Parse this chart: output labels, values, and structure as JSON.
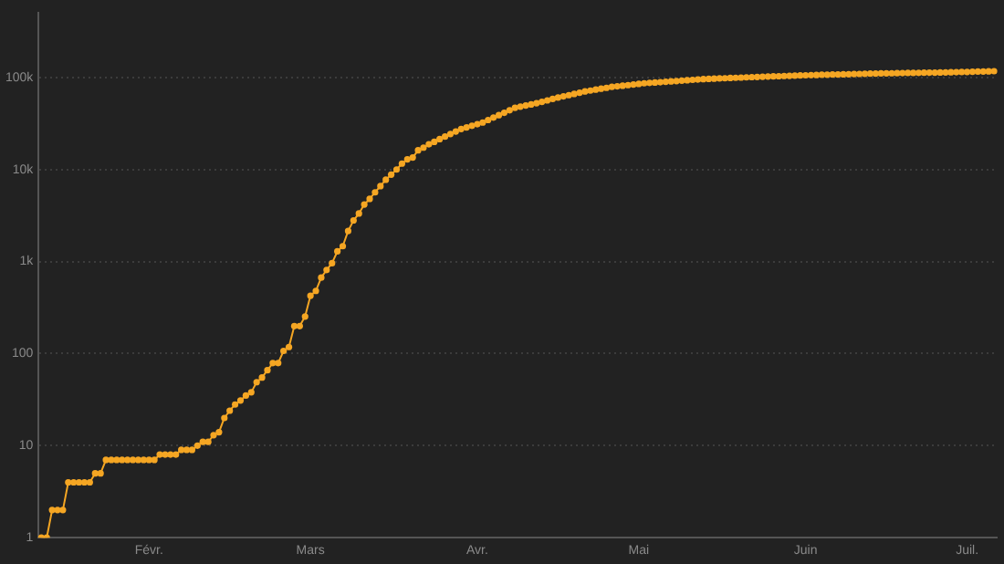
{
  "chart_data": {
    "type": "line",
    "log": "y",
    "grid": "y",
    "marker": "circle",
    "line_style": "solid",
    "categories": [
      null,
      null,
      null,
      null,
      null,
      null,
      null,
      null,
      null,
      null,
      null,
      null,
      null,
      null,
      null,
      null,
      null,
      null,
      null,
      null,
      "Févr.",
      null,
      null,
      null,
      null,
      null,
      null,
      null,
      null,
      null,
      null,
      null,
      null,
      null,
      null,
      null,
      null,
      null,
      null,
      null,
      null,
      null,
      null,
      null,
      null,
      null,
      null,
      null,
      null,
      null,
      "Mars",
      null,
      null,
      null,
      null,
      null,
      null,
      null,
      null,
      null,
      null,
      null,
      null,
      null,
      null,
      null,
      null,
      null,
      null,
      null,
      null,
      null,
      null,
      null,
      null,
      null,
      null,
      null,
      null,
      null,
      null,
      "Avr.",
      null,
      null,
      null,
      null,
      null,
      null,
      null,
      null,
      null,
      null,
      null,
      null,
      null,
      null,
      null,
      null,
      null,
      null,
      null,
      null,
      null,
      null,
      null,
      null,
      null,
      null,
      null,
      null,
      null,
      "Mai",
      null,
      null,
      null,
      null,
      null,
      null,
      null,
      null,
      null,
      null,
      null,
      null,
      null,
      null,
      null,
      null,
      null,
      null,
      null,
      null,
      null,
      null,
      null,
      null,
      null,
      null,
      null,
      null,
      null,
      null,
      "Juin",
      null,
      null,
      null,
      null,
      null,
      null,
      null,
      null,
      null,
      null,
      null,
      null,
      null,
      null,
      null,
      null,
      null,
      null,
      null,
      null,
      null,
      null,
      null,
      null,
      null,
      null,
      null,
      null,
      null,
      "Juil.",
      null,
      null,
      null,
      null,
      null
    ],
    "ylim": [
      1,
      500000
    ],
    "yticks": [
      {
        "value": 1,
        "label": "1"
      },
      {
        "value": 10,
        "label": "10"
      },
      {
        "value": 100,
        "label": "100"
      },
      {
        "value": 1000,
        "label": "1k"
      },
      {
        "value": 10000,
        "label": "10k"
      },
      {
        "value": 100000,
        "label": "100k"
      }
    ],
    "series": [
      {
        "color": "#f5a623",
        "values": [
          1,
          1,
          2,
          2,
          2,
          4,
          4,
          4,
          4,
          4,
          5,
          5,
          7,
          7,
          7,
          7,
          7,
          7,
          7,
          7,
          7,
          7,
          8,
          8,
          8,
          8,
          9,
          9,
          9,
          10,
          11,
          11,
          13,
          14,
          20,
          24,
          28,
          31,
          35,
          38,
          49,
          55,
          66,
          79,
          79,
          107,
          118,
          199,
          199,
          253,
          425,
          480,
          670,
          810,
          960,
          1290,
          1470,
          2150,
          2800,
          3330,
          4170,
          4800,
          5650,
          6600,
          7750,
          8800,
          10000,
          11600,
          12900,
          13500,
          16200,
          17300,
          18800,
          20000,
          21400,
          22800,
          24300,
          25900,
          27600,
          28700,
          29900,
          31100,
          32400,
          34500,
          36700,
          39000,
          41400,
          44000,
          46800,
          48200,
          49600,
          51000,
          52500,
          54400,
          56400,
          58400,
          60500,
          62400,
          64300,
          66300,
          68400,
          70500,
          72100,
          73800,
          75500,
          77200,
          79000,
          80200,
          81400,
          82600,
          83900,
          85200,
          86500,
          87300,
          88100,
          88900,
          89800,
          90600,
          91500,
          92400,
          93300,
          94200,
          95100,
          96000,
          96500,
          97100,
          97600,
          98100,
          98700,
          99200,
          99800,
          100300,
          100900,
          101400,
          102000,
          102400,
          102900,
          103300,
          103800,
          104200,
          104700,
          105100,
          105600,
          106100,
          106500,
          107000,
          107300,
          107700,
          108000,
          108300,
          108600,
          109000,
          109300,
          109700,
          110000,
          110300,
          110700,
          111000,
          111200,
          111400,
          111700,
          111900,
          112100,
          112400,
          112600,
          112800,
          113000,
          113300,
          113500,
          113900,
          114300,
          114700,
          115000,
          115400,
          115800,
          116200,
          116600,
          117000
        ]
      }
    ]
  }
}
